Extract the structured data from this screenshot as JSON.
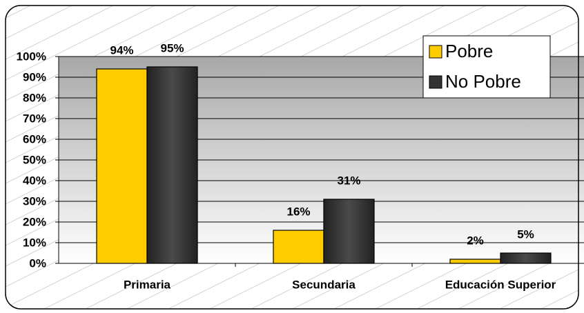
{
  "chart_data": {
    "type": "bar",
    "categories": [
      "Primaria",
      "Secundaria",
      "Educación Superior"
    ],
    "series": [
      {
        "name": "Pobre",
        "color": "#ffcc00",
        "values": [
          94,
          16,
          2
        ],
        "value_labels": [
          "94%",
          "16%",
          "2%"
        ]
      },
      {
        "name": "No Pobre",
        "color": "#333333",
        "values": [
          95,
          31,
          5
        ],
        "value_labels": [
          "95%",
          "31%",
          "5%"
        ]
      }
    ],
    "ylim": [
      0,
      100
    ],
    "yticks": [
      {
        "value": 0,
        "label": "0%"
      },
      {
        "value": 10,
        "label": "10%"
      },
      {
        "value": 20,
        "label": "20%"
      },
      {
        "value": 30,
        "label": "30%"
      },
      {
        "value": 40,
        "label": "40%"
      },
      {
        "value": 50,
        "label": "50%"
      },
      {
        "value": 60,
        "label": "60%"
      },
      {
        "value": 70,
        "label": "70%"
      },
      {
        "value": 80,
        "label": "80%"
      },
      {
        "value": 90,
        "label": "90%"
      },
      {
        "value": 100,
        "label": "100%"
      }
    ],
    "grid": true,
    "legend": "upper right"
  }
}
